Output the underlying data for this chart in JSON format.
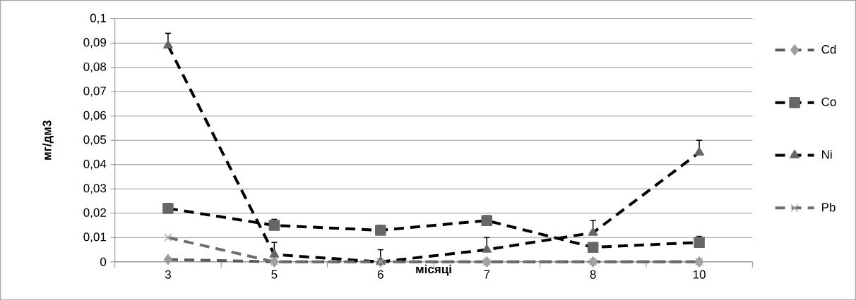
{
  "chart_data": {
    "type": "line",
    "xlabel": "місяці",
    "ylabel": "мг/дм3",
    "categories": [
      "3",
      "5",
      "6",
      "7",
      "8",
      "10"
    ],
    "series": [
      {
        "name": "Cd",
        "color": "#5a5a5a",
        "marker": "diamond",
        "values": [
          0.001,
          0,
          0,
          0,
          0,
          0
        ]
      },
      {
        "name": "Co",
        "color": "#000000",
        "marker": "square",
        "values": [
          0.022,
          0.015,
          0.013,
          0.017,
          0.006,
          0.008
        ],
        "errors": [
          [
            0.022,
            0.024
          ],
          [
            0.015,
            0.0175
          ],
          [
            0.013,
            0.015
          ],
          [
            0.017,
            0.019
          ],
          null,
          [
            0.008,
            0.0105
          ]
        ]
      },
      {
        "name": "Ni",
        "color": "#000000",
        "marker": "triangle",
        "values": [
          0.089,
          0.003,
          0,
          0.005,
          0.012,
          0.045
        ],
        "errors": [
          [
            0.089,
            0.094
          ],
          [
            0.003,
            0.008
          ],
          [
            0,
            0.005
          ],
          [
            0.005,
            0.01
          ],
          [
            0.012,
            0.017
          ],
          [
            0.045,
            0.05
          ]
        ]
      },
      {
        "name": "Pb",
        "color": "#6e6e6e",
        "marker": "cross",
        "values": [
          0.01,
          0,
          0,
          0,
          0,
          0
        ]
      }
    ],
    "ylim": [
      0,
      0.1
    ],
    "yticks": [
      0,
      {
        "value": 0.01,
        "label": "0,01"
      },
      {
        "value": 0.02,
        "label": "0,02"
      },
      {
        "value": 0.03,
        "label": "0,03"
      },
      {
        "value": 0.04,
        "label": "0,04"
      },
      {
        "value": 0.05,
        "label": "0,05"
      },
      {
        "value": 0.06,
        "label": "0,06"
      },
      {
        "value": 0.07,
        "label": "0,07"
      },
      {
        "value": 0.08,
        "label": "0,08"
      },
      {
        "value": 0.09,
        "label": "0,09"
      },
      {
        "value": 0.1,
        "label": "0,1"
      }
    ],
    "grid": "y",
    "legend": "right",
    "line_style": "dashed"
  }
}
